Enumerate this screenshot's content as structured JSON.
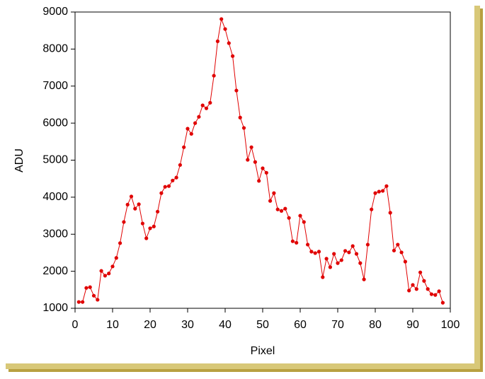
{
  "chart_data": {
    "type": "line",
    "x_label": "Pixel",
    "y_label": "ADU",
    "x": [
      1,
      2,
      3,
      4,
      5,
      6,
      7,
      8,
      9,
      10,
      11,
      12,
      13,
      14,
      15,
      16,
      17,
      18,
      19,
      20,
      21,
      22,
      23,
      24,
      25,
      26,
      27,
      28,
      29,
      30,
      31,
      32,
      33,
      34,
      35,
      36,
      37,
      38,
      39,
      40,
      41,
      42,
      43,
      44,
      45,
      46,
      47,
      48,
      49,
      50,
      51,
      52,
      53,
      54,
      55,
      56,
      57,
      58,
      59,
      60,
      61,
      62,
      63,
      64,
      65,
      66,
      67,
      68,
      69,
      70,
      71,
      72,
      73,
      74,
      75,
      76,
      77,
      78,
      79,
      80,
      81,
      82,
      83,
      84,
      85,
      86,
      87,
      88,
      89,
      90,
      91,
      92,
      93,
      94,
      95,
      96,
      97,
      98
    ],
    "series": [
      {
        "color": "#e00000",
        "values": [
          1170,
          1170,
          1550,
          1570,
          1340,
          1230,
          2010,
          1880,
          1940,
          2130,
          2360,
          2760,
          3330,
          3800,
          4020,
          3690,
          3810,
          3290,
          2890,
          3160,
          3210,
          3610,
          4110,
          4280,
          4300,
          4450,
          4530,
          4870,
          5350,
          5850,
          5710,
          6000,
          6170,
          6480,
          6400,
          6550,
          7280,
          8210,
          8810,
          8540,
          8160,
          7810,
          6880,
          6150,
          5870,
          5010,
          5350,
          4950,
          4440,
          4780,
          4660,
          3900,
          4110,
          3670,
          3630,
          3690,
          3440,
          2810,
          2770,
          3500,
          3330,
          2720,
          2530,
          2490,
          2530,
          1840,
          2340,
          2110,
          2470,
          2220,
          2300,
          2550,
          2510,
          2680,
          2470,
          2220,
          1780,
          2720,
          3670,
          4110,
          4150,
          4170,
          4300,
          3580,
          2560,
          2720,
          2510,
          2260,
          1480,
          1630,
          1520,
          1970,
          1740,
          1520,
          1380,
          1360,
          1460,
          1150
        ]
      }
    ],
    "xlim": [
      0,
      100
    ],
    "xticks": [
      0,
      10,
      20,
      30,
      40,
      50,
      60,
      70,
      80,
      90,
      100
    ],
    "ylim": [
      1000,
      9000
    ],
    "yticks": [
      1000,
      2000,
      3000,
      4000,
      5000,
      6000,
      7000,
      8000,
      9000
    ]
  }
}
